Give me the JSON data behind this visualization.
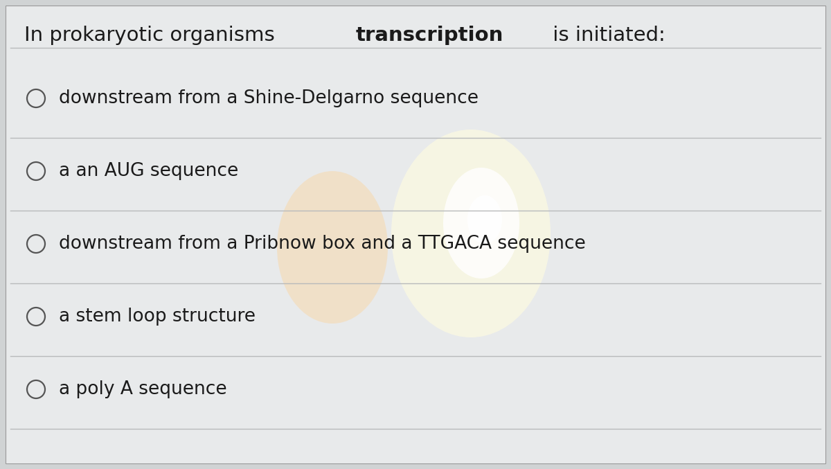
{
  "title_normal1": "In prokaryotic organisms ",
  "title_bold": "transcription",
  "title_normal2": " is initiated:",
  "options": [
    "downstream from a Shine-Delgarno sequence",
    "a an AUG sequence",
    "downstream from a Pribnow box and a TTGACA sequence",
    "a stem loop structure",
    "a poly A sequence"
  ],
  "bg_color": "#d0d3d4",
  "card_color": "#e8eaeb",
  "title_fontsize": 21,
  "option_fontsize": 19,
  "text_color": "#1a1a1a",
  "divider_color": "#b8babb",
  "circle_color": "#555555",
  "glow1_color": "#ffd090",
  "glow2_color": "#fffce0",
  "glow3_color": "#ffffff"
}
